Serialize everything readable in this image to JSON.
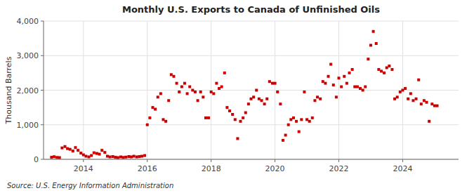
{
  "chart_data": {
    "type": "scatter",
    "title": "Monthly U.S. Exports to Canada of Unfinished Oils",
    "ylabel": "Thousand Barrels",
    "source": "Source: U.S. Energy Information Administration",
    "color": "#cc0000",
    "marker": "square",
    "grid": true,
    "xlim": [
      2012.75,
      2025.75
    ],
    "xticks": [
      2014,
      2016,
      2018,
      2020,
      2022,
      2024
    ],
    "ylim": [
      0,
      4000
    ],
    "yticks": [
      0,
      {
        "value": 1000,
        "label": "1,000"
      },
      {
        "value": 2000,
        "label": "2,000"
      },
      {
        "value": 3000,
        "label": "3,000"
      },
      {
        "value": 4000,
        "label": "4,000"
      }
    ],
    "x": [
      2013.0,
      2013.08,
      2013.17,
      2013.25,
      2013.33,
      2013.42,
      2013.5,
      2013.58,
      2013.67,
      2013.75,
      2013.83,
      2013.92,
      2014.0,
      2014.08,
      2014.17,
      2014.25,
      2014.33,
      2014.42,
      2014.5,
      2014.58,
      2014.67,
      2014.75,
      2014.83,
      2014.92,
      2015.0,
      2015.08,
      2015.17,
      2015.25,
      2015.33,
      2015.42,
      2015.5,
      2015.58,
      2015.67,
      2015.75,
      2015.83,
      2015.92,
      2016.0,
      2016.08,
      2016.17,
      2016.25,
      2016.33,
      2016.42,
      2016.5,
      2016.58,
      2016.67,
      2016.75,
      2016.83,
      2016.92,
      2017.0,
      2017.08,
      2017.17,
      2017.25,
      2017.33,
      2017.42,
      2017.5,
      2017.58,
      2017.67,
      2017.75,
      2017.83,
      2017.92,
      2018.0,
      2018.08,
      2018.17,
      2018.25,
      2018.33,
      2018.42,
      2018.5,
      2018.58,
      2018.67,
      2018.75,
      2018.83,
      2018.92,
      2019.0,
      2019.08,
      2019.17,
      2019.25,
      2019.33,
      2019.42,
      2019.5,
      2019.58,
      2019.67,
      2019.75,
      2019.83,
      2019.92,
      2020.0,
      2020.08,
      2020.17,
      2020.25,
      2020.33,
      2020.42,
      2020.5,
      2020.58,
      2020.67,
      2020.75,
      2020.83,
      2020.92,
      2021.0,
      2021.08,
      2021.17,
      2021.25,
      2021.33,
      2021.42,
      2021.5,
      2021.58,
      2021.67,
      2021.75,
      2021.83,
      2021.92,
      2022.0,
      2022.08,
      2022.17,
      2022.25,
      2022.33,
      2022.42,
      2022.5,
      2022.58,
      2022.67,
      2022.75,
      2022.83,
      2022.92,
      2023.0,
      2023.08,
      2023.17,
      2023.25,
      2023.33,
      2023.42,
      2023.5,
      2023.58,
      2023.67,
      2023.75,
      2023.83,
      2023.92,
      2024.0,
      2024.08,
      2024.17,
      2024.25,
      2024.33,
      2024.42,
      2024.5,
      2024.58,
      2024.67,
      2024.75,
      2024.83,
      2024.92,
      2025.0,
      2025.08
    ],
    "values": [
      60,
      75,
      55,
      50,
      330,
      370,
      310,
      290,
      240,
      340,
      260,
      180,
      130,
      90,
      70,
      110,
      190,
      170,
      150,
      260,
      200,
      90,
      70,
      80,
      60,
      50,
      70,
      55,
      65,
      80,
      70,
      90,
      70,
      80,
      90,
      110,
      1000,
      1200,
      1500,
      1450,
      1800,
      1900,
      1150,
      1100,
      1700,
      2450,
      2400,
      2200,
      1950,
      2100,
      2200,
      1900,
      2100,
      2000,
      1950,
      1700,
      1950,
      1800,
      1200,
      1200,
      1950,
      1900,
      2200,
      2050,
      2100,
      2500,
      1500,
      1400,
      1300,
      1150,
      600,
      1100,
      1200,
      1350,
      1600,
      1750,
      1800,
      2000,
      1750,
      1700,
      1600,
      1750,
      2250,
      2200,
      2200,
      1950,
      1600,
      550,
      700,
      1000,
      1150,
      1200,
      1100,
      800,
      1150,
      1950,
      1150,
      1100,
      1200,
      1700,
      1800,
      1750,
      2250,
      2200,
      2400,
      2750,
      2150,
      1800,
      2350,
      2100,
      2400,
      2200,
      2500,
      2600,
      2100,
      2100,
      2050,
      2000,
      2100,
      2900,
      3300,
      3700,
      3350,
      2600,
      2550,
      2500,
      2650,
      2700,
      2600,
      1750,
      1800,
      1950,
      2000,
      2050,
      1750,
      1900,
      1700,
      1750,
      2300,
      1600,
      1700,
      1650,
      1100,
      1600,
      1550,
      1550
    ]
  }
}
